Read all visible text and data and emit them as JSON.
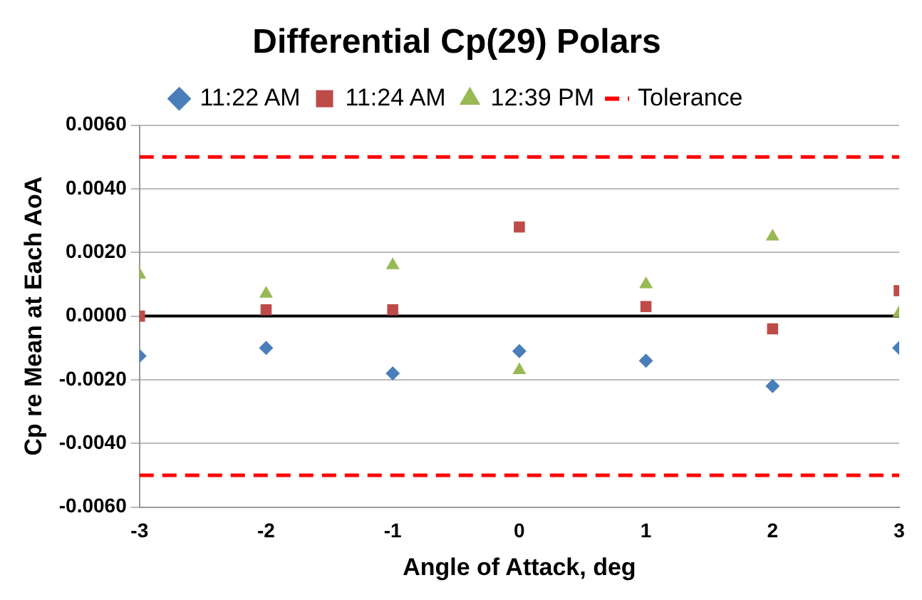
{
  "chart_data": {
    "type": "scatter",
    "title": "Differential Cp(29) Polars",
    "xlabel": "Angle of Attack, deg",
    "ylabel": "Cp re Mean at Each AoA",
    "x": [
      -3,
      -2,
      -1,
      0,
      1,
      2,
      3
    ],
    "series": [
      {
        "name": "11:22 AM",
        "color": "#4a7ebb",
        "marker": "diamond",
        "values": [
          -0.00125,
          -0.001,
          -0.0018,
          -0.0011,
          -0.0014,
          -0.0022,
          -0.001
        ]
      },
      {
        "name": "11:24 AM",
        "color": "#be4b48",
        "marker": "square",
        "values": [
          0,
          0.0002,
          0.0002,
          0.0028,
          0.0003,
          -0.0004,
          0.0008
        ]
      },
      {
        "name": "12:39 PM",
        "color": "#98b954",
        "marker": "triangle",
        "values": [
          0.0013,
          0.0007,
          0.0016,
          -0.0017,
          0.001,
          0.0025,
          0.0001
        ]
      }
    ],
    "ref_lines": [
      {
        "axis": "y",
        "value": 0.005,
        "label": "Tolerance",
        "color": "#ff0000",
        "line_style": "dashed"
      },
      {
        "axis": "y",
        "value": -0.005,
        "color": "#ff0000",
        "line_style": "dashed"
      },
      {
        "axis": "y",
        "value": 0,
        "color": "#000000",
        "line_style": "solid"
      }
    ],
    "xlim": [
      -3,
      3
    ],
    "xticks": [
      -3,
      -2,
      -1,
      0,
      1,
      2,
      3
    ],
    "ylim": [
      -0.006,
      0.006
    ],
    "yticks": [
      {
        "value": -0.006,
        "label": "-0.0060"
      },
      {
        "value": -0.004,
        "label": "-0.0040"
      },
      {
        "value": -0.002,
        "label": "-0.0020"
      },
      {
        "value": 0,
        "label": "0.0000"
      },
      {
        "value": 0.002,
        "label": "0.0020"
      },
      {
        "value": 0.004,
        "label": "0.0040"
      },
      {
        "value": 0.006,
        "label": "0.0060"
      }
    ],
    "grid": "y",
    "legend": "top"
  }
}
